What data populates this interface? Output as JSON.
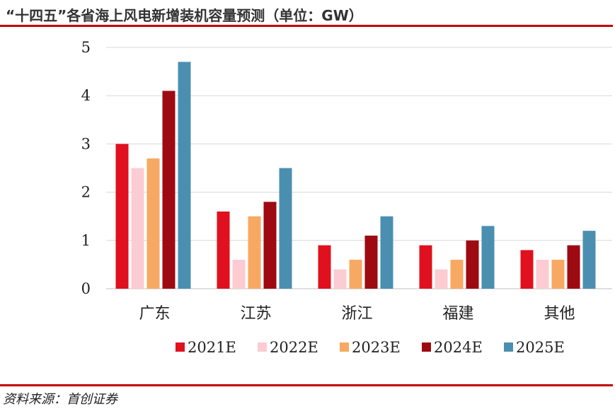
{
  "header": {
    "title": "“十四五”各省海上风电新增装机容量预测（单位：GW）"
  },
  "footer": {
    "source": "资料来源：首创证券"
  },
  "chart_data": {
    "type": "bar",
    "title": "“十四五”各省海上风电新增装机容量预测（单位：GW）",
    "xlabel": "",
    "ylabel": "",
    "ylim": [
      0,
      5
    ],
    "yticks": [
      "0",
      "1",
      "2",
      "3",
      "4",
      "5"
    ],
    "grid": true,
    "legend_position": "bottom",
    "categories": [
      "广东",
      "江苏",
      "浙江",
      "福建",
      "其他"
    ],
    "series": [
      {
        "name": "2021E",
        "color": "#e0101e",
        "values": [
          3.0,
          1.6,
          0.9,
          0.9,
          0.8
        ]
      },
      {
        "name": "2022E",
        "color": "#fdcbd2",
        "values": [
          2.5,
          0.6,
          0.4,
          0.4,
          0.6
        ]
      },
      {
        "name": "2023E",
        "color": "#f7a963",
        "values": [
          2.7,
          1.5,
          0.6,
          0.6,
          0.6
        ]
      },
      {
        "name": "2024E",
        "color": "#9e0a12",
        "values": [
          4.1,
          1.8,
          1.1,
          1.0,
          0.9
        ]
      },
      {
        "name": "2025E",
        "color": "#4b8fb0",
        "values": [
          4.7,
          2.5,
          1.5,
          1.3,
          1.2
        ]
      }
    ]
  }
}
